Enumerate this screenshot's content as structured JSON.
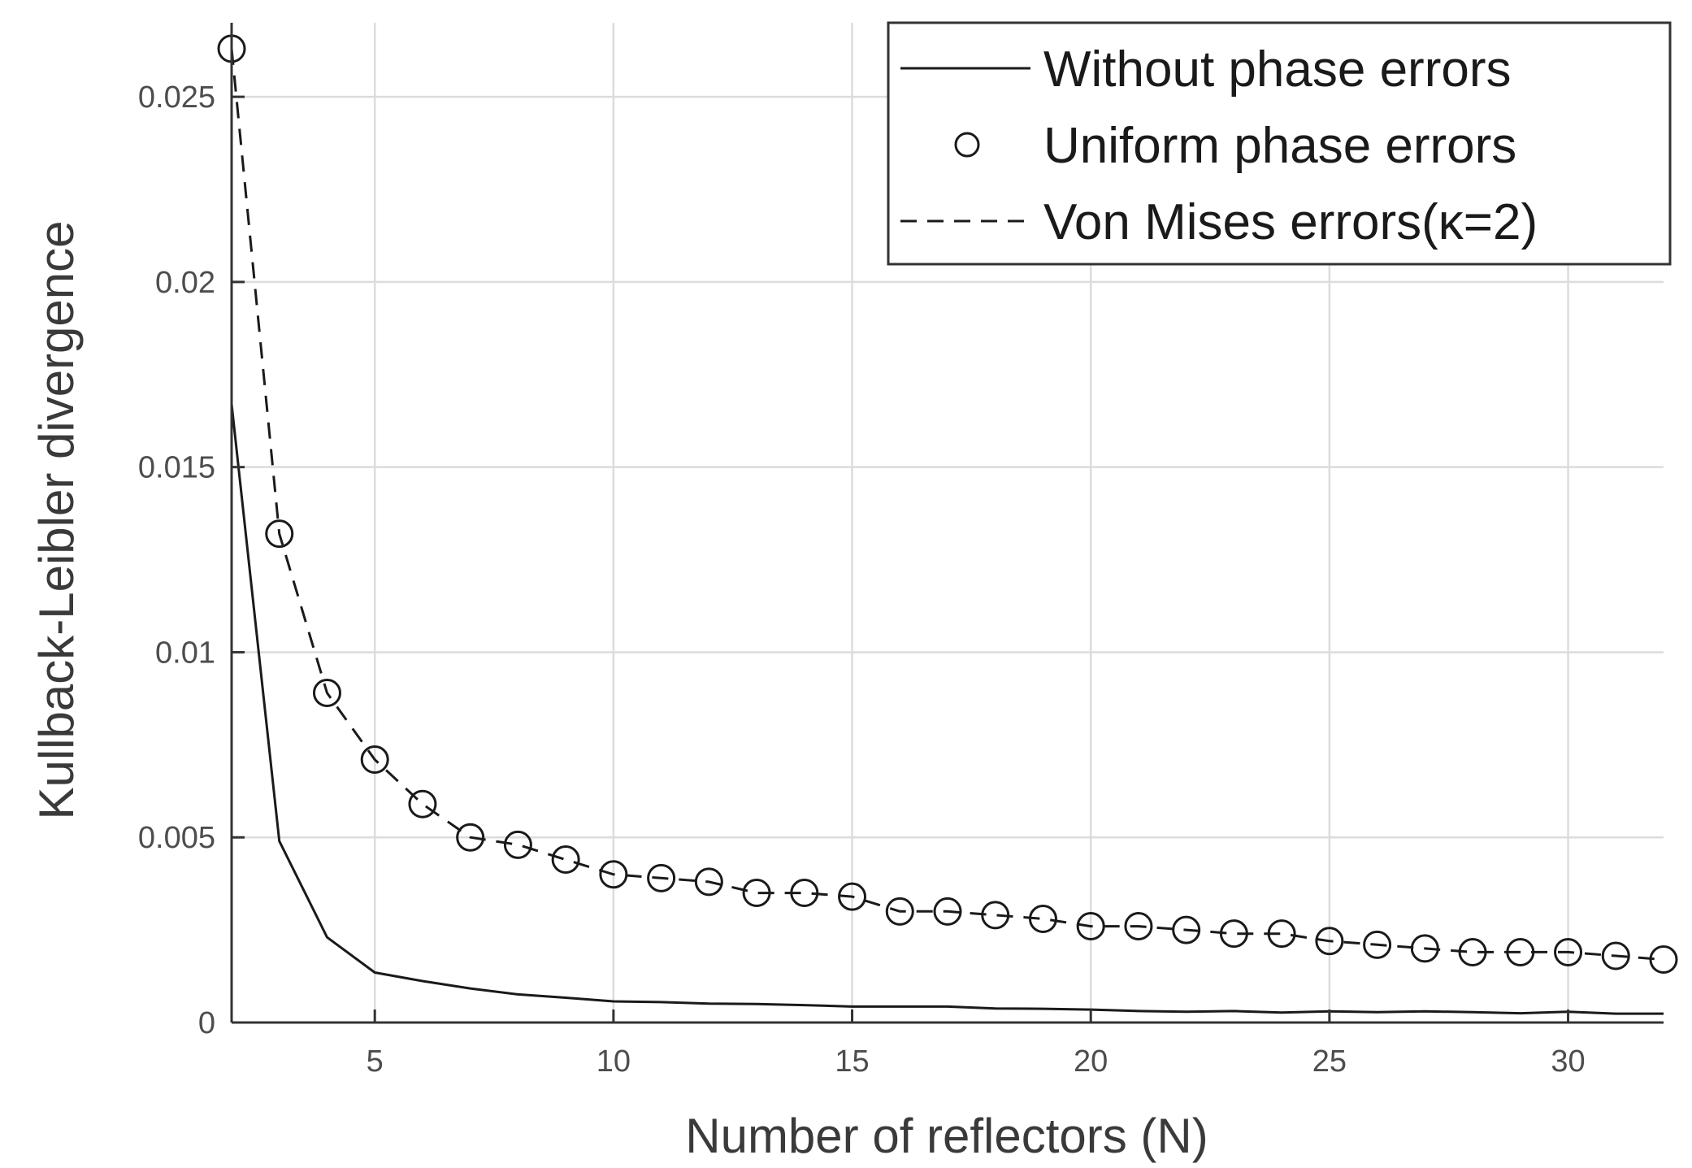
{
  "chart_data": {
    "type": "line",
    "title": "",
    "xlabel": "Number of reflectors (N)",
    "ylabel": "Kullback-Leibler divergence",
    "xlim": [
      2,
      32
    ],
    "ylim": [
      0,
      0.027
    ],
    "xticks": [
      5,
      10,
      15,
      20,
      25,
      30
    ],
    "xtick_labels": [
      "5",
      "10",
      "15",
      "20",
      "25",
      "30"
    ],
    "yticks": [
      0,
      0.005,
      0.01,
      0.015,
      0.02,
      0.025
    ],
    "ytick_labels": [
      "0",
      "0.005",
      "0.01",
      "0.015",
      "0.02",
      "0.025"
    ],
    "grid": true,
    "legend_position": "top-right",
    "x": [
      2,
      3,
      4,
      5,
      6,
      7,
      8,
      9,
      10,
      11,
      12,
      13,
      14,
      15,
      16,
      17,
      18,
      19,
      20,
      21,
      22,
      23,
      24,
      25,
      26,
      27,
      28,
      29,
      30,
      31,
      32
    ],
    "series": [
      {
        "name": "Without phase errors",
        "style": "solid",
        "values": [
          0.0167,
          0.0049,
          0.0023,
          0.00135,
          0.00112,
          0.00092,
          0.00076,
          0.00067,
          0.00057,
          0.00055,
          0.00051,
          0.0005,
          0.00047,
          0.00043,
          0.00043,
          0.00043,
          0.00038,
          0.00037,
          0.00035,
          0.00031,
          0.00029,
          0.00031,
          0.00027,
          0.0003,
          0.00028,
          0.0003,
          0.00028,
          0.00025,
          0.00029,
          0.00024,
          0.00024
        ]
      },
      {
        "name": "Uniform phase errors",
        "style": "markers",
        "values": [
          0.0263,
          0.0132,
          0.0089,
          0.0071,
          0.0059,
          0.005,
          0.0048,
          0.0044,
          0.004,
          0.0039,
          0.0038,
          0.0035,
          0.0035,
          0.0034,
          0.003,
          0.003,
          0.0029,
          0.0028,
          0.0026,
          0.0026,
          0.0025,
          0.0024,
          0.0024,
          0.0022,
          0.0021,
          0.002,
          0.0019,
          0.0019,
          0.0019,
          0.0018,
          0.0017
        ]
      },
      {
        "name": "Von Mises errors(κ=2)",
        "style": "dashed",
        "values": [
          0.0263,
          0.0132,
          0.0089,
          0.0071,
          0.0059,
          0.005,
          0.0048,
          0.0044,
          0.004,
          0.0039,
          0.0038,
          0.0035,
          0.0035,
          0.0034,
          0.003,
          0.003,
          0.0029,
          0.0028,
          0.0026,
          0.0026,
          0.0025,
          0.0024,
          0.0024,
          0.0022,
          0.0021,
          0.002,
          0.0019,
          0.0019,
          0.0019,
          0.0018,
          0.0017
        ]
      }
    ]
  }
}
